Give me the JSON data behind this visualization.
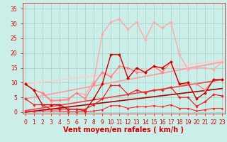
{
  "title": "",
  "xlabel": "Vent moyen/en rafales ( km/h )",
  "ylabel": "",
  "bg_color": "#cceee8",
  "grid_color": "#aad4ce",
  "x_ticks": [
    0,
    1,
    2,
    3,
    4,
    5,
    6,
    7,
    8,
    9,
    10,
    11,
    12,
    13,
    14,
    15,
    16,
    17,
    18,
    19,
    20,
    21,
    22,
    23
  ],
  "y_ticks": [
    0,
    5,
    10,
    15,
    20,
    25,
    30,
    35
  ],
  "ylim": [
    -0.5,
    37
  ],
  "xlim": [
    -0.3,
    23.3
  ],
  "lines": [
    {
      "x": [
        0,
        1,
        2,
        3,
        4,
        5,
        6,
        7,
        8,
        9,
        10,
        11,
        12,
        13,
        14,
        15,
        16,
        17,
        18,
        19,
        20,
        21,
        22,
        23
      ],
      "y": [
        9.5,
        7.5,
        6.5,
        3.5,
        4.0,
        4.0,
        6.5,
        6.0,
        10.5,
        26.5,
        30.5,
        31.5,
        28.0,
        30.5,
        24.5,
        30.5,
        28.5,
        30.5,
        19.5,
        14.5,
        15.0,
        15.0,
        14.5,
        17.0
      ],
      "color": "#ffaaaa",
      "lw": 1.0,
      "marker": "D",
      "ms": 2.0,
      "zorder": 3
    },
    {
      "x": [
        0,
        1,
        2,
        3,
        4,
        5,
        6,
        7,
        8,
        9,
        10,
        11,
        12,
        13,
        14,
        15,
        16,
        17,
        18,
        19,
        20,
        21,
        22,
        23
      ],
      "y": [
        9.5,
        7.5,
        6.5,
        4.0,
        4.0,
        4.5,
        6.5,
        4.5,
        9.5,
        13.5,
        12.0,
        15.5,
        15.0,
        13.5,
        13.5,
        15.5,
        13.5,
        17.0,
        9.5,
        9.5,
        9.5,
        7.5,
        11.0,
        11.0
      ],
      "color": "#ff8080",
      "lw": 1.0,
      "marker": "D",
      "ms": 2.0,
      "zorder": 4
    },
    {
      "x": [
        0,
        1,
        2,
        3,
        4,
        5,
        6,
        7,
        8,
        9,
        10,
        11,
        12,
        13,
        14,
        15,
        16,
        17,
        18,
        19,
        20,
        21,
        22,
        23
      ],
      "y": [
        9.5,
        7.5,
        2.5,
        2.5,
        2.5,
        1.0,
        1.0,
        0.5,
        4.5,
        9.5,
        19.5,
        19.5,
        11.5,
        15.0,
        13.5,
        15.5,
        15.0,
        17.0,
        9.5,
        10.0,
        4.5,
        6.5,
        11.0,
        11.0
      ],
      "color": "#cc0000",
      "lw": 1.0,
      "marker": "D",
      "ms": 2.0,
      "zorder": 5
    },
    {
      "x": [
        0,
        1,
        2,
        3,
        4,
        5,
        6,
        7,
        8,
        9,
        10,
        11,
        12,
        13,
        14,
        15,
        16,
        17,
        18,
        19,
        20,
        21,
        22,
        23
      ],
      "y": [
        4.5,
        2.5,
        2.5,
        1.0,
        1.0,
        1.0,
        1.0,
        1.0,
        2.5,
        4.5,
        9.0,
        9.0,
        6.0,
        7.5,
        6.5,
        7.5,
        7.5,
        8.5,
        5.0,
        5.0,
        2.0,
        3.5,
        6.0,
        5.5
      ],
      "color": "#ee2222",
      "lw": 0.9,
      "marker": "D",
      "ms": 1.8,
      "zorder": 5
    },
    {
      "x": [
        0,
        1,
        2,
        3,
        4,
        5,
        6,
        7,
        8,
        9,
        10,
        11,
        12,
        13,
        14,
        15,
        16,
        17,
        18,
        19,
        20,
        21,
        22,
        23
      ],
      "y": [
        0.2,
        0.2,
        0.4,
        0.4,
        0.4,
        0.1,
        0.1,
        0.1,
        0.4,
        0.8,
        2.2,
        2.2,
        1.3,
        1.8,
        1.8,
        2.2,
        1.8,
        2.5,
        1.3,
        1.3,
        0.4,
        0.8,
        1.3,
        1.3
      ],
      "color": "#ff2222",
      "lw": 0.8,
      "marker": "D",
      "ms": 1.5,
      "zorder": 5
    },
    {
      "x": [
        0,
        23
      ],
      "y": [
        9.5,
        17.5
      ],
      "color": "#ffcccc",
      "lw": 1.2,
      "marker": null,
      "ms": 0,
      "zorder": 2
    },
    {
      "x": [
        0,
        23
      ],
      "y": [
        4.5,
        17.0
      ],
      "color": "#ff9999",
      "lw": 1.2,
      "marker": null,
      "ms": 0,
      "zorder": 2
    },
    {
      "x": [
        0,
        23
      ],
      "y": [
        0.5,
        11.0
      ],
      "color": "#ee4444",
      "lw": 1.2,
      "marker": null,
      "ms": 0,
      "zorder": 2
    },
    {
      "x": [
        0,
        23
      ],
      "y": [
        0.0,
        8.0
      ],
      "color": "#aa0000",
      "lw": 1.2,
      "marker": null,
      "ms": 0,
      "zorder": 2
    }
  ],
  "tick_color": "#cc0000",
  "label_color": "#cc0000",
  "tick_fontsize": 5.5,
  "label_fontsize": 7
}
